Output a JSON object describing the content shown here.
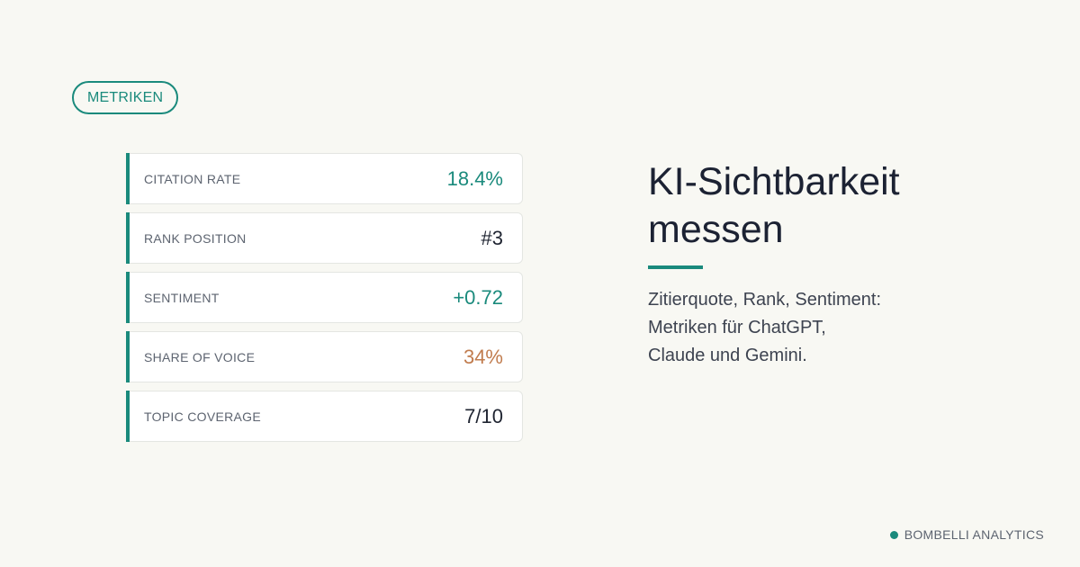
{
  "badge": {
    "label": "METRIKEN"
  },
  "metrics": [
    {
      "label": "CITATION RATE",
      "value": "18.4%",
      "color": "#1a8a7c"
    },
    {
      "label": "RANK POSITION",
      "value": "#3",
      "color": "#1f2431"
    },
    {
      "label": "SENTIMENT",
      "value": "+0.72",
      "color": "#1a8a7c"
    },
    {
      "label": "SHARE OF VOICE",
      "value": "34%",
      "color": "#c17c4e"
    },
    {
      "label": "TOPIC COVERAGE",
      "value": "7/10",
      "color": "#1f2431"
    }
  ],
  "headline": {
    "line1": "KI-Sichtbarkeit",
    "line2": "messen"
  },
  "subtitle": {
    "line1": "Zitierquote, Rank, Sentiment:",
    "line2": "Metriken für ChatGPT,",
    "line3": "Claude und Gemini."
  },
  "brand": {
    "name": "BOMBELLI ANALYTICS",
    "dot_icon": "dot-icon"
  },
  "colors": {
    "accent": "#1a8a7c",
    "warm": "#c17c4e",
    "background": "#f8f8f3"
  }
}
